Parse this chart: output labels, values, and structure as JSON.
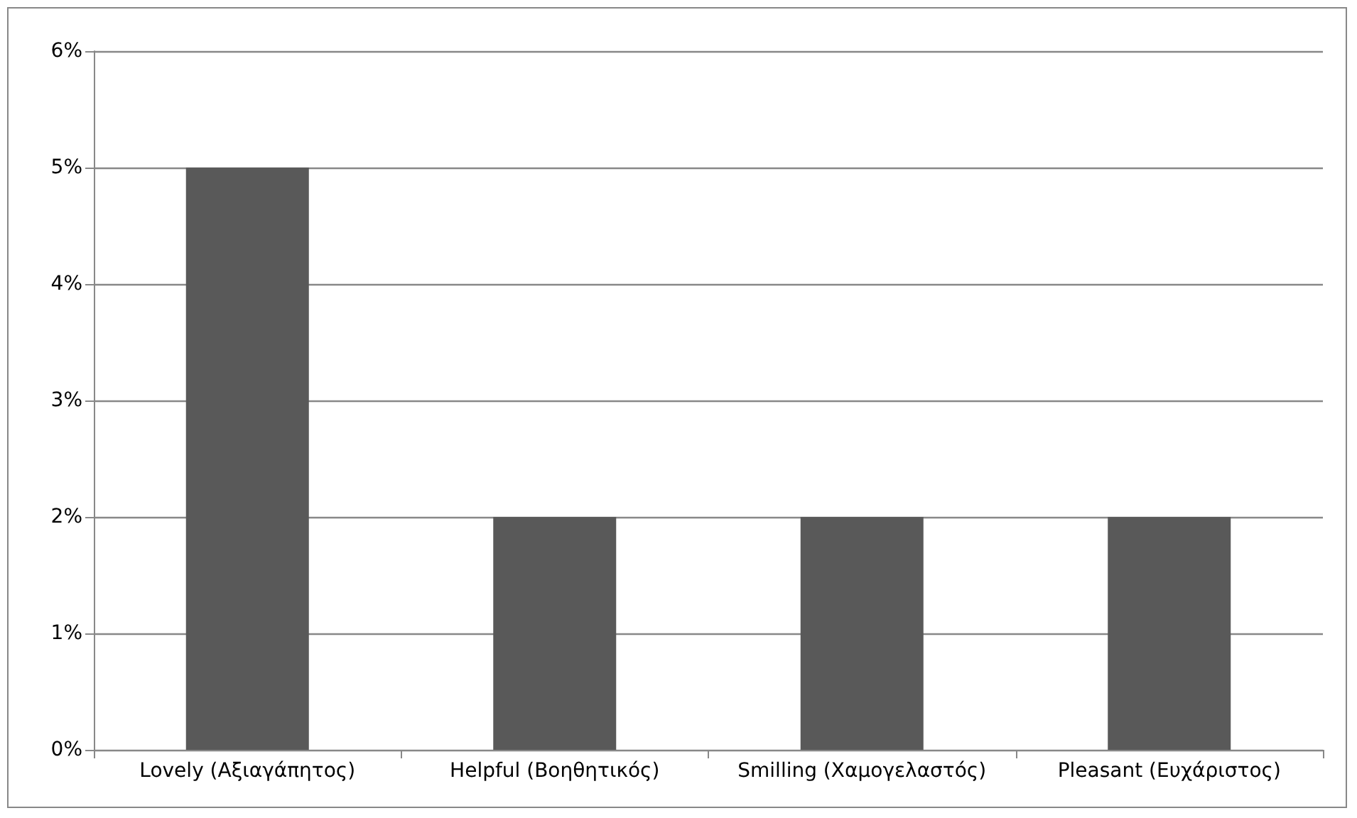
{
  "chart_data": {
    "type": "bar",
    "categories": [
      "Lovely (Αξιαγάπητος)",
      "Helpful (Βοηθητικός)",
      "Smilling (Χαμογελαστός)",
      "Pleasant (Ευχάριστος)"
    ],
    "values": [
      5,
      2,
      2,
      2
    ],
    "color": "#595959",
    "ylim": [
      0,
      6
    ],
    "yticks": [
      {
        "value": 0,
        "label": "0%"
      },
      {
        "value": 1,
        "label": "1%"
      },
      {
        "value": 2,
        "label": "2%"
      },
      {
        "value": 3,
        "label": "3%"
      },
      {
        "value": 4,
        "label": "4%"
      },
      {
        "value": 5,
        "label": "5%"
      },
      {
        "value": 6,
        "label": "6%"
      }
    ],
    "grid": "y"
  }
}
